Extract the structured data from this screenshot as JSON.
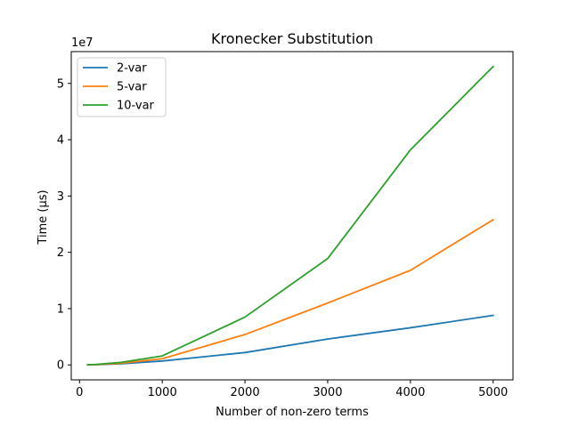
{
  "chart_data": {
    "type": "line",
    "title": "Kronecker Substitution",
    "xlabel": "Number of non-zero terms",
    "ylabel": "Time (µs)",
    "y_offset_label": "1e7",
    "xlim": [
      -100,
      5240
    ],
    "ylim": [
      -2650000,
      55650000
    ],
    "x_ticks": [
      0,
      1000,
      2000,
      3000,
      4000,
      5000
    ],
    "x_tick_labels": [
      "0",
      "1000",
      "2000",
      "3000",
      "4000",
      "5000"
    ],
    "y_ticks": [
      0,
      10000000,
      20000000,
      30000000,
      40000000,
      50000000
    ],
    "y_tick_labels": [
      "0",
      "1",
      "2",
      "3",
      "4",
      "5"
    ],
    "grid": false,
    "legend_position": "top-left",
    "x": [
      100,
      200,
      500,
      1000,
      2000,
      3000,
      4000,
      5000
    ],
    "series": [
      {
        "name": "2-var",
        "color": "#1f77b4",
        "values": [
          10000,
          40000,
          200000,
          700000,
          2200000,
          4600000,
          6600000,
          8800000
        ]
      },
      {
        "name": "5-var",
        "color": "#ff7f0e",
        "values": [
          20000,
          60000,
          300000,
          1100000,
          5400000,
          11000000,
          16800000,
          25800000
        ]
      },
      {
        "name": "10-var",
        "color": "#2ca02c",
        "values": [
          30000,
          100000,
          450000,
          1600000,
          8500000,
          18900000,
          38200000,
          53000000
        ]
      }
    ]
  }
}
